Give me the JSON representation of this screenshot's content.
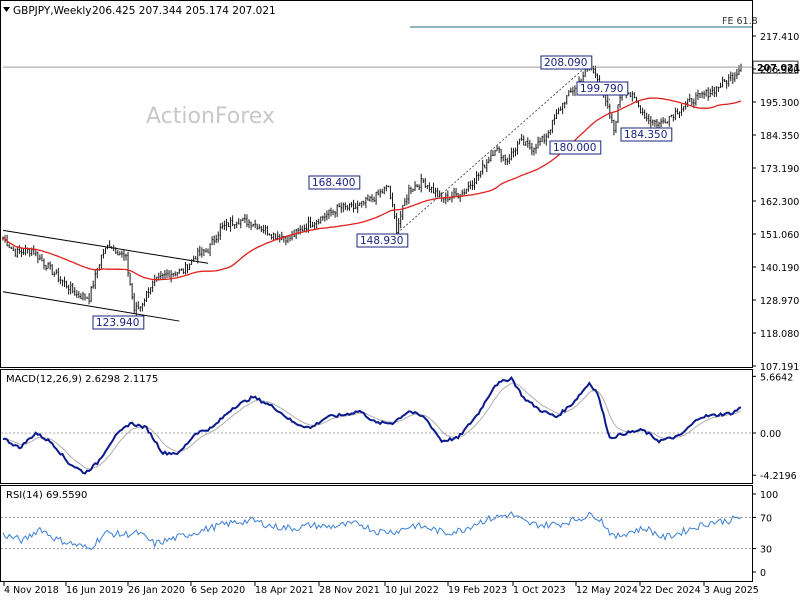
{
  "header": {
    "symbol": "GBPJPY,Weekly",
    "ohlc": "206.425 207.344 205.174 207.021",
    "watermark": "ActionForex"
  },
  "colors": {
    "candle": "#1a1a1a",
    "sma": "#e0201c",
    "macd": "#0a1a8c",
    "signal": "#b0b0b0",
    "rsi": "#3a7fd5",
    "level_line": "#1f6d7a",
    "label_border": "#1a237e",
    "label_text": "#1a237e"
  },
  "chart_data": [
    {
      "type": "candlestick",
      "panel": "price",
      "ylim": [
        107.191,
        227.0
      ],
      "yticks": [
        "217.410",
        "206.300",
        "195.300",
        "184.350",
        "173.190",
        "162.300",
        "151.060",
        "140.190",
        "128.970",
        "118.080",
        "107.191"
      ],
      "last_price": "207.021",
      "xticks": [
        "4 Nov 2018",
        "16 Jun 2019",
        "26 Jan 2020",
        "6 Sep 2020",
        "18 Apr 2021",
        "28 Nov 2021",
        "10 Jul 2022",
        "19 Feb 2023",
        "1 Oct 2023",
        "12 May 2024",
        "22 Dec 2024",
        "3 Aug 2025"
      ],
      "anchors": [
        [
          0,
          150
        ],
        [
          6,
          145
        ],
        [
          14,
          146
        ],
        [
          25,
          138
        ],
        [
          36,
          131
        ],
        [
          42,
          130
        ],
        [
          48,
          144
        ],
        [
          52,
          148
        ],
        [
          60,
          143
        ],
        [
          64,
          126
        ],
        [
          67,
          127
        ],
        [
          72,
          134
        ],
        [
          80,
          138
        ],
        [
          88,
          139
        ],
        [
          94,
          144
        ],
        [
          100,
          146
        ],
        [
          106,
          153
        ],
        [
          114,
          156
        ],
        [
          122,
          155
        ],
        [
          132,
          151
        ],
        [
          140,
          150
        ],
        [
          148,
          154
        ],
        [
          156,
          157
        ],
        [
          164,
          160
        ],
        [
          172,
          160
        ],
        [
          180,
          163
        ],
        [
          188,
          167
        ],
        [
          192,
          153
        ],
        [
          198,
          166
        ],
        [
          205,
          169
        ],
        [
          214,
          163
        ],
        [
          224,
          165
        ],
        [
          232,
          171
        ],
        [
          240,
          180
        ],
        [
          246,
          176
        ],
        [
          252,
          182
        ],
        [
          258,
          180
        ],
        [
          264,
          183
        ],
        [
          274,
          196
        ],
        [
          282,
          203
        ],
        [
          286,
          208
        ],
        [
          290,
          204
        ],
        [
          294,
          195
        ],
        [
          298,
          186
        ],
        [
          302,
          201
        ],
        [
          308,
          196
        ],
        [
          314,
          190
        ],
        [
          320,
          188
        ],
        [
          328,
          192
        ],
        [
          336,
          196
        ],
        [
          346,
          199
        ],
        [
          354,
          203
        ],
        [
          360,
          207
        ]
      ],
      "moving_average": "MA(50)",
      "annotations": [
        "123.940",
        "168.400",
        "148.930",
        "208.090",
        "199.790",
        "180.000",
        "184.350"
      ],
      "level_label": "FE 61.8"
    },
    {
      "type": "line",
      "panel": "macd",
      "title": "MACD(12,26,9) 2.6298 2.1175",
      "yticks": [
        "5.6642",
        "0.00",
        "-4.2196"
      ],
      "ylim": [
        -5.0,
        6.3
      ],
      "macd_anchors": [
        [
          0,
          -0.5
        ],
        [
          8,
          -1.5
        ],
        [
          16,
          0.0
        ],
        [
          24,
          -1.0
        ],
        [
          32,
          -3.0
        ],
        [
          40,
          -4.0
        ],
        [
          46,
          -3.0
        ],
        [
          54,
          -0.5
        ],
        [
          62,
          1.0
        ],
        [
          70,
          0.5
        ],
        [
          78,
          -2.0
        ],
        [
          86,
          -2.0
        ],
        [
          94,
          0.0
        ],
        [
          102,
          0.5
        ],
        [
          112,
          2.5
        ],
        [
          122,
          3.6
        ],
        [
          132,
          2.6
        ],
        [
          142,
          1.0
        ],
        [
          150,
          0.5
        ],
        [
          158,
          1.6
        ],
        [
          166,
          1.8
        ],
        [
          174,
          2.2
        ],
        [
          182,
          1.0
        ],
        [
          190,
          1.0
        ],
        [
          198,
          2.2
        ],
        [
          206,
          1.5
        ],
        [
          214,
          -0.8
        ],
        [
          222,
          -0.5
        ],
        [
          232,
          2.0
        ],
        [
          240,
          4.8
        ],
        [
          248,
          5.5
        ],
        [
          254,
          3.5
        ],
        [
          262,
          2.3
        ],
        [
          270,
          1.6
        ],
        [
          278,
          3.0
        ],
        [
          286,
          5.0
        ],
        [
          290,
          4.0
        ],
        [
          296,
          -0.5
        ],
        [
          304,
          0.0
        ],
        [
          312,
          0.3
        ],
        [
          320,
          -0.8
        ],
        [
          330,
          -0.3
        ],
        [
          340,
          1.6
        ],
        [
          348,
          1.8
        ],
        [
          356,
          2.0
        ],
        [
          360,
          2.6
        ]
      ]
    },
    {
      "type": "line",
      "panel": "rsi",
      "title": "RSI(14) 69.5590",
      "yticks": [
        "100",
        "70",
        "30",
        "0"
      ],
      "ylim": [
        0,
        100
      ],
      "rsi_anchors": [
        [
          0,
          48
        ],
        [
          10,
          40
        ],
        [
          18,
          56
        ],
        [
          26,
          42
        ],
        [
          34,
          36
        ],
        [
          42,
          30
        ],
        [
          50,
          50
        ],
        [
          58,
          48
        ],
        [
          66,
          50
        ],
        [
          74,
          36
        ],
        [
          82,
          42
        ],
        [
          90,
          48
        ],
        [
          98,
          54
        ],
        [
          106,
          60
        ],
        [
          114,
          64
        ],
        [
          122,
          66
        ],
        [
          132,
          58
        ],
        [
          142,
          56
        ],
        [
          150,
          60
        ],
        [
          158,
          58
        ],
        [
          166,
          60
        ],
        [
          174,
          62
        ],
        [
          182,
          52
        ],
        [
          192,
          52
        ],
        [
          200,
          60
        ],
        [
          208,
          56
        ],
        [
          216,
          50
        ],
        [
          224,
          54
        ],
        [
          232,
          64
        ],
        [
          240,
          70
        ],
        [
          248,
          74
        ],
        [
          256,
          62
        ],
        [
          264,
          60
        ],
        [
          272,
          62
        ],
        [
          280,
          68
        ],
        [
          288,
          74
        ],
        [
          292,
          66
        ],
        [
          298,
          44
        ],
        [
          306,
          52
        ],
        [
          314,
          56
        ],
        [
          322,
          44
        ],
        [
          330,
          50
        ],
        [
          338,
          58
        ],
        [
          346,
          64
        ],
        [
          354,
          66
        ],
        [
          360,
          70
        ]
      ]
    }
  ]
}
